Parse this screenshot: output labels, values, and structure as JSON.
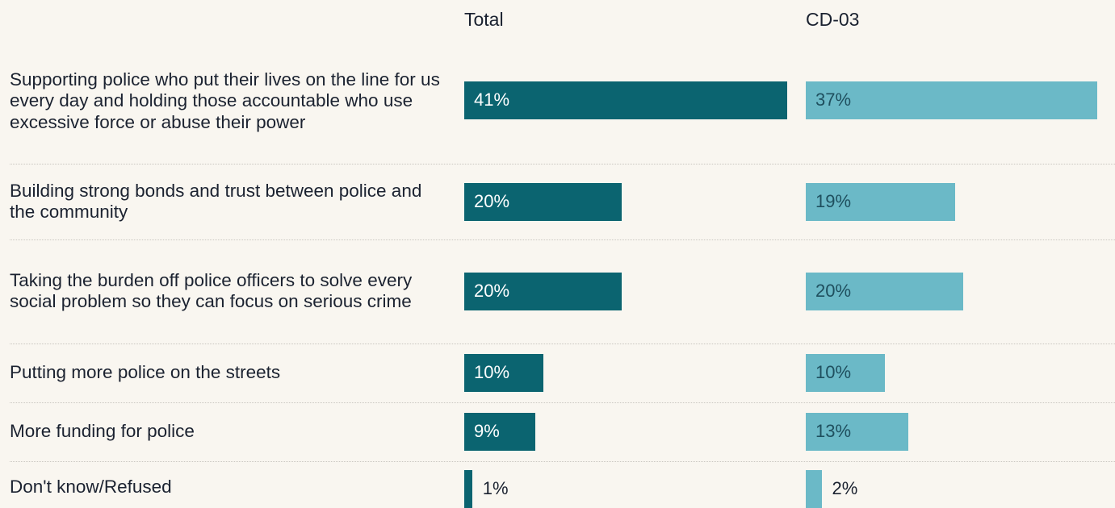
{
  "chart_data": {
    "type": "bar",
    "orientation": "horizontal",
    "categories": [
      "Supporting police who put their lives on the line for us every day and holding those accountable who use excessive force or abuse their power",
      "Building strong bonds and trust between police and the community",
      "Taking the burden off police officers to solve every social problem so they can focus on serious crime",
      "Putting more police on the streets",
      "More funding for police",
      "Don't know/Refused"
    ],
    "series": [
      {
        "name": "Total",
        "values": [
          41,
          20,
          20,
          10,
          9,
          1
        ],
        "labels": [
          "41%",
          "20%",
          "20%",
          "10%",
          "9%",
          "1%"
        ],
        "color": "#0b6470"
      },
      {
        "name": "CD-03",
        "values": [
          37,
          19,
          20,
          10,
          13,
          2
        ],
        "labels": [
          "37%",
          "19%",
          "20%",
          "10%",
          "13%",
          "2%"
        ],
        "color": "#6bb9c7"
      }
    ],
    "title": "",
    "xlabel": "",
    "ylabel": "",
    "grid": false,
    "legend": "none"
  },
  "colors": {
    "background": "#f9f6f0",
    "text": "#1b2230",
    "divider": "#c9c6c0"
  }
}
